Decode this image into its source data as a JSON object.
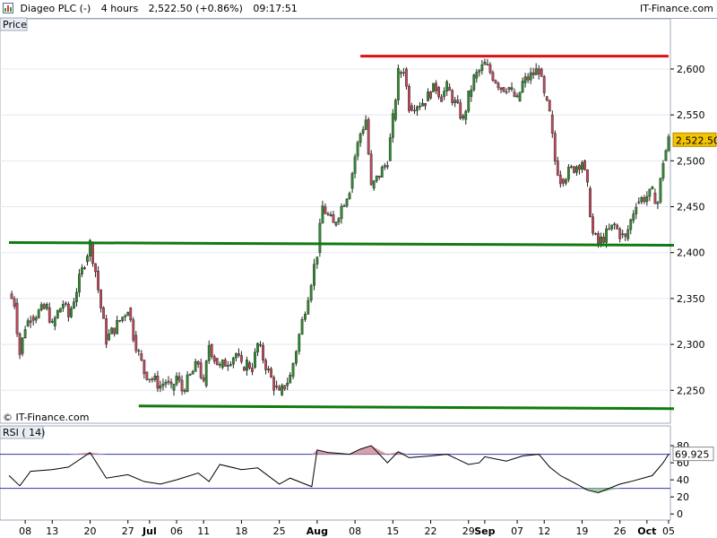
{
  "header": {
    "instrument": "Diageo PLC (-)",
    "timeframe": "4 hours",
    "quote": "2,522.50 (+0.86%)",
    "time": "09:17:51",
    "brand": "IT-Finance.com"
  },
  "price_panel_label": "Price",
  "copyright": "© IT-Finance.com",
  "rsi_panel_label": "RSI ( 14)",
  "last_price_tag": "2,522.50",
  "rsi_value_tag": "69.925",
  "colors": {
    "up": "#2e8b2e",
    "down": "#c0485a",
    "resistance": "#e01010",
    "support": "#127a12",
    "rsi_band": "#3333aa",
    "tag_bg": "#f5c400"
  },
  "chart_data": [
    {
      "type": "candlestick",
      "title": "Price",
      "ylim": [
        2220,
        2640
      ],
      "yticks": [
        "2,600",
        "2,550",
        "2,500",
        "2,450",
        "2,400",
        "2,350",
        "2,300",
        "2,250"
      ],
      "ytick_values": [
        2600,
        2550,
        2500,
        2450,
        2400,
        2350,
        2300,
        2250
      ],
      "xtick_labels": [
        "08",
        "13",
        "20",
        "27",
        "Jul",
        "06",
        "11",
        "18",
        "25",
        "Aug",
        "08",
        "15",
        "22",
        "29",
        "Sep",
        "07",
        "12",
        "19",
        "26",
        "Oct",
        "05"
      ],
      "xtick_dates": [
        "2023-06-08",
        "2023-06-13",
        "2023-06-20",
        "2023-06-27",
        "2023-07-01",
        "2023-07-06",
        "2023-07-11",
        "2023-07-18",
        "2023-07-25",
        "2023-08-01",
        "2023-08-08",
        "2023-08-15",
        "2023-08-22",
        "2023-08-29",
        "2023-09-01",
        "2023-09-07",
        "2023-09-12",
        "2023-09-19",
        "2023-09-26",
        "2023-10-01",
        "2023-10-05"
      ],
      "close_path": [
        [
          "2023-06-05",
          2355
        ],
        [
          "2023-06-06",
          2345
        ],
        [
          "2023-06-07",
          2290
        ],
        [
          "2023-06-08",
          2320
        ],
        [
          "2023-06-09",
          2330
        ],
        [
          "2023-06-12",
          2340
        ],
        [
          "2023-06-13",
          2320
        ],
        [
          "2023-06-14",
          2335
        ],
        [
          "2023-06-15",
          2345
        ],
        [
          "2023-06-16",
          2330
        ],
        [
          "2023-06-19",
          2390
        ],
        [
          "2023-06-20",
          2410
        ],
        [
          "2023-06-21",
          2380
        ],
        [
          "2023-06-22",
          2340
        ],
        [
          "2023-06-23",
          2305
        ],
        [
          "2023-06-26",
          2330
        ],
        [
          "2023-06-27",
          2340
        ],
        [
          "2023-06-28",
          2310
        ],
        [
          "2023-06-29",
          2290
        ],
        [
          "2023-06-30",
          2270
        ],
        [
          "2023-07-03",
          2255
        ],
        [
          "2023-07-04",
          2260
        ],
        [
          "2023-07-05",
          2250
        ],
        [
          "2023-07-06",
          2265
        ],
        [
          "2023-07-07",
          2250
        ],
        [
          "2023-07-10",
          2280
        ],
        [
          "2023-07-11",
          2255
        ],
        [
          "2023-07-12",
          2300
        ],
        [
          "2023-07-13",
          2285
        ],
        [
          "2023-07-14",
          2275
        ],
        [
          "2023-07-17",
          2290
        ],
        [
          "2023-07-18",
          2275
        ],
        [
          "2023-07-19",
          2280
        ],
        [
          "2023-07-20",
          2275
        ],
        [
          "2023-07-21",
          2300
        ],
        [
          "2023-07-24",
          2255
        ],
        [
          "2023-07-25",
          2245
        ],
        [
          "2023-07-26",
          2255
        ],
        [
          "2023-07-27",
          2265
        ],
        [
          "2023-08-01",
          2400
        ],
        [
          "2023-08-02",
          2450
        ],
        [
          "2023-08-03",
          2440
        ],
        [
          "2023-08-04",
          2430
        ],
        [
          "2023-08-07",
          2470
        ],
        [
          "2023-08-08",
          2505
        ],
        [
          "2023-08-09",
          2530
        ],
        [
          "2023-08-10",
          2545
        ],
        [
          "2023-08-11",
          2470
        ],
        [
          "2023-08-14",
          2500
        ],
        [
          "2023-08-15",
          2545
        ],
        [
          "2023-08-16",
          2595
        ],
        [
          "2023-08-17",
          2600
        ],
        [
          "2023-08-18",
          2560
        ],
        [
          "2023-08-21",
          2565
        ],
        [
          "2023-08-22",
          2575
        ],
        [
          "2023-08-23",
          2580
        ],
        [
          "2023-08-24",
          2570
        ],
        [
          "2023-08-25",
          2580
        ],
        [
          "2023-08-28",
          2545
        ],
        [
          "2023-08-29",
          2570
        ],
        [
          "2023-08-30",
          2590
        ],
        [
          "2023-09-01",
          2605
        ],
        [
          "2023-09-04",
          2580
        ],
        [
          "2023-09-05",
          2580
        ],
        [
          "2023-09-06",
          2575
        ],
        [
          "2023-09-07",
          2565
        ],
        [
          "2023-09-08",
          2585
        ],
        [
          "2023-09-11",
          2600
        ],
        [
          "2023-09-12",
          2570
        ],
        [
          "2023-09-13",
          2550
        ],
        [
          "2023-09-14",
          2500
        ],
        [
          "2023-09-15",
          2480
        ],
        [
          "2023-09-18",
          2495
        ],
        [
          "2023-09-19",
          2500
        ],
        [
          "2023-09-20",
          2470
        ],
        [
          "2023-09-21",
          2420
        ],
        [
          "2023-09-22",
          2410
        ],
        [
          "2023-09-25",
          2430
        ],
        [
          "2023-09-26",
          2420
        ],
        [
          "2023-09-27",
          2415
        ],
        [
          "2023-09-28",
          2435
        ],
        [
          "2023-09-29",
          2455
        ],
        [
          "2023-10-02",
          2465
        ],
        [
          "2023-10-03",
          2455
        ],
        [
          "2023-10-04",
          2500
        ],
        [
          "2023-10-05",
          2522.5
        ]
      ],
      "horizontal_lines": [
        {
          "name": "resistance",
          "color": "red",
          "y": 2614,
          "x_start": "2023-08-09",
          "x_end": "2023-10-05"
        },
        {
          "name": "support-upper",
          "color": "green",
          "y_start": 2411,
          "y_end": 2408,
          "x_start": "2023-06-05",
          "x_end": "2023-10-06"
        },
        {
          "name": "support-lower",
          "color": "green",
          "y_start": 2233,
          "y_end": 2230,
          "x_start": "2023-06-29",
          "x_end": "2023-10-06"
        }
      ],
      "last_price": 2522.5
    },
    {
      "type": "line",
      "title": "RSI ( 14)",
      "ylim": [
        -5,
        100
      ],
      "yticks": [
        "80",
        "60",
        "40",
        "20",
        "0"
      ],
      "ytick_values": [
        80,
        60,
        40,
        20,
        0
      ],
      "bands": [
        70,
        30
      ],
      "last_value": 69.925,
      "x": [
        "2023-06-05",
        "2023-06-07",
        "2023-06-09",
        "2023-06-13",
        "2023-06-16",
        "2023-06-20",
        "2023-06-23",
        "2023-06-27",
        "2023-06-30",
        "2023-07-03",
        "2023-07-06",
        "2023-07-10",
        "2023-07-12",
        "2023-07-14",
        "2023-07-18",
        "2023-07-21",
        "2023-07-25",
        "2023-07-27",
        "2023-07-31",
        "2023-08-01",
        "2023-08-03",
        "2023-08-07",
        "2023-08-09",
        "2023-08-11",
        "2023-08-14",
        "2023-08-16",
        "2023-08-18",
        "2023-08-22",
        "2023-08-25",
        "2023-08-29",
        "2023-08-31",
        "2023-09-01",
        "2023-09-05",
        "2023-09-08",
        "2023-09-11",
        "2023-09-13",
        "2023-09-15",
        "2023-09-18",
        "2023-09-20",
        "2023-09-22",
        "2023-09-26",
        "2023-09-28",
        "2023-10-02",
        "2023-10-04",
        "2023-10-05"
      ],
      "values": [
        45,
        33,
        50,
        52,
        55,
        72,
        42,
        46,
        38,
        35,
        40,
        48,
        38,
        58,
        52,
        54,
        35,
        42,
        32,
        75,
        72,
        70,
        76,
        80,
        60,
        73,
        66,
        68,
        70,
        58,
        60,
        67,
        62,
        68,
        70,
        55,
        45,
        35,
        28,
        25,
        35,
        38,
        45,
        60,
        70
      ]
    }
  ]
}
